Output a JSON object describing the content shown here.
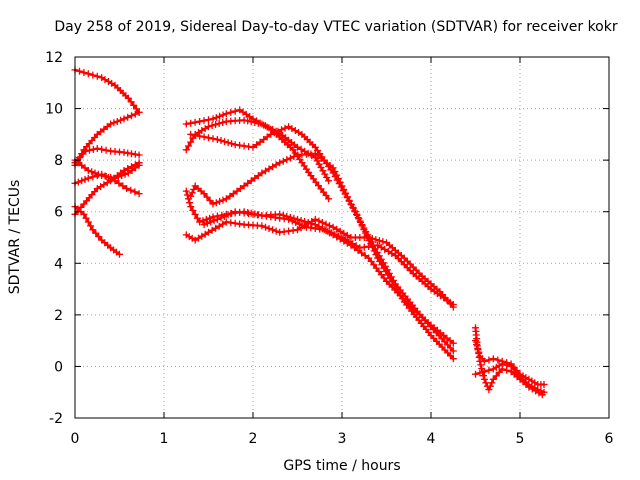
{
  "colors": {
    "series": "#ff0000",
    "grid": "#a0a0a0",
    "axis": "#000000",
    "background": "#ffffff"
  },
  "chart_data": {
    "type": "scatter",
    "title": "Day 258 of 2019, Sidereal Day-to-day VTEC variation (SDTVAR) for receiver kokr",
    "xlabel": "GPS time / hours",
    "ylabel": "SDTVAR / TECUs",
    "xlim": [
      0,
      6
    ],
    "ylim": [
      -2,
      12
    ],
    "xticks": [
      0,
      1,
      2,
      3,
      4,
      5,
      6
    ],
    "yticks": [
      -2,
      0,
      2,
      4,
      6,
      8,
      10,
      12
    ],
    "grid": true,
    "legend": "none",
    "marker": "+",
    "series": [
      {
        "name": "track-1",
        "points": [
          [
            0.0,
            11.5
          ],
          [
            0.15,
            11.35
          ],
          [
            0.3,
            11.2
          ],
          [
            0.45,
            10.9
          ],
          [
            0.6,
            10.4
          ],
          [
            0.72,
            9.85
          ]
        ]
      },
      {
        "name": "track-2",
        "points": [
          [
            0.0,
            7.8
          ],
          [
            0.1,
            8.4
          ],
          [
            0.25,
            9.0
          ],
          [
            0.4,
            9.4
          ],
          [
            0.55,
            9.6
          ],
          [
            0.72,
            9.85
          ]
        ]
      },
      {
        "name": "track-3",
        "points": [
          [
            0.0,
            7.9
          ],
          [
            0.12,
            8.35
          ],
          [
            0.25,
            8.45
          ],
          [
            0.4,
            8.35
          ],
          [
            0.55,
            8.3
          ],
          [
            0.72,
            8.2
          ]
        ]
      },
      {
        "name": "track-4",
        "points": [
          [
            0.0,
            8.0
          ],
          [
            0.15,
            7.6
          ],
          [
            0.3,
            7.4
          ],
          [
            0.45,
            7.3
          ],
          [
            0.6,
            7.5
          ],
          [
            0.72,
            7.8
          ]
        ]
      },
      {
        "name": "track-5",
        "points": [
          [
            0.0,
            7.1
          ],
          [
            0.15,
            7.3
          ],
          [
            0.3,
            7.45
          ],
          [
            0.45,
            7.2
          ],
          [
            0.58,
            6.9
          ],
          [
            0.72,
            6.7
          ]
        ]
      },
      {
        "name": "track-6",
        "points": [
          [
            0.0,
            6.2
          ],
          [
            0.1,
            5.9
          ],
          [
            0.2,
            5.3
          ],
          [
            0.3,
            4.9
          ],
          [
            0.4,
            4.6
          ],
          [
            0.5,
            4.35
          ]
        ]
      },
      {
        "name": "track-7",
        "points": [
          [
            0.0,
            5.9
          ],
          [
            0.1,
            6.3
          ],
          [
            0.25,
            6.9
          ],
          [
            0.4,
            7.2
          ],
          [
            0.55,
            7.6
          ],
          [
            0.72,
            7.9
          ]
        ]
      },
      {
        "name": "track-8",
        "points": [
          [
            1.25,
            9.4
          ],
          [
            1.4,
            9.5
          ],
          [
            1.55,
            9.6
          ],
          [
            1.7,
            9.8
          ],
          [
            1.85,
            9.95
          ],
          [
            2.0,
            9.6
          ],
          [
            2.2,
            9.2
          ],
          [
            2.45,
            8.4
          ],
          [
            2.65,
            7.4
          ],
          [
            2.85,
            6.5
          ]
        ]
      },
      {
        "name": "track-9",
        "points": [
          [
            1.25,
            8.4
          ],
          [
            1.35,
            9.0
          ],
          [
            1.5,
            9.3
          ],
          [
            1.7,
            9.5
          ],
          [
            1.9,
            9.55
          ],
          [
            2.1,
            9.4
          ],
          [
            2.3,
            9.05
          ],
          [
            2.5,
            8.5
          ],
          [
            2.7,
            8.1
          ],
          [
            2.85,
            7.2
          ]
        ]
      },
      {
        "name": "track-10",
        "points": [
          [
            1.3,
            9.0
          ],
          [
            1.45,
            8.9
          ],
          [
            1.6,
            8.8
          ],
          [
            1.8,
            8.6
          ],
          [
            2.0,
            8.5
          ],
          [
            2.2,
            9.0
          ],
          [
            2.4,
            9.3
          ],
          [
            2.55,
            9.0
          ],
          [
            2.7,
            8.5
          ],
          [
            2.9,
            7.5
          ],
          [
            3.15,
            6.0
          ],
          [
            3.4,
            4.2
          ],
          [
            3.7,
            2.5
          ],
          [
            4.0,
            1.2
          ],
          [
            4.25,
            0.3
          ]
        ]
      },
      {
        "name": "track-11",
        "points": [
          [
            1.3,
            6.6
          ],
          [
            1.35,
            7.0
          ],
          [
            1.45,
            6.7
          ],
          [
            1.55,
            6.3
          ],
          [
            1.7,
            6.5
          ],
          [
            1.9,
            7.0
          ],
          [
            2.1,
            7.5
          ],
          [
            2.3,
            7.9
          ],
          [
            2.5,
            8.2
          ],
          [
            2.7,
            8.25
          ],
          [
            2.9,
            7.7
          ],
          [
            3.1,
            6.3
          ],
          [
            3.35,
            4.7
          ],
          [
            3.6,
            3.2
          ],
          [
            3.9,
            1.9
          ],
          [
            4.25,
            0.6
          ]
        ]
      },
      {
        "name": "track-12",
        "points": [
          [
            1.25,
            6.8
          ],
          [
            1.3,
            6.2
          ],
          [
            1.4,
            5.6
          ],
          [
            1.55,
            5.8
          ],
          [
            1.7,
            5.9
          ],
          [
            1.9,
            6.0
          ],
          [
            2.1,
            5.85
          ],
          [
            2.3,
            5.9
          ],
          [
            2.5,
            5.7
          ],
          [
            2.7,
            5.5
          ],
          [
            2.9,
            5.1
          ],
          [
            3.1,
            4.7
          ],
          [
            3.3,
            4.2
          ],
          [
            3.5,
            3.3
          ],
          [
            3.75,
            2.4
          ],
          [
            4.0,
            1.6
          ],
          [
            4.25,
            0.9
          ]
        ]
      },
      {
        "name": "track-13",
        "points": [
          [
            1.25,
            5.1
          ],
          [
            1.35,
            4.9
          ],
          [
            1.5,
            5.2
          ],
          [
            1.7,
            5.6
          ],
          [
            1.9,
            5.5
          ],
          [
            2.1,
            5.45
          ],
          [
            2.3,
            5.2
          ],
          [
            2.5,
            5.3
          ],
          [
            2.7,
            5.7
          ],
          [
            2.9,
            5.4
          ],
          [
            3.1,
            5.0
          ],
          [
            3.3,
            5.0
          ],
          [
            3.5,
            4.8
          ],
          [
            3.7,
            4.2
          ],
          [
            3.9,
            3.5
          ],
          [
            4.1,
            2.9
          ],
          [
            4.25,
            2.3
          ]
        ]
      },
      {
        "name": "track-14",
        "points": [
          [
            1.45,
            5.5
          ],
          [
            1.6,
            5.7
          ],
          [
            1.8,
            6.0
          ],
          [
            2.0,
            5.9
          ],
          [
            2.2,
            5.8
          ],
          [
            2.4,
            5.7
          ],
          [
            2.6,
            5.4
          ],
          [
            2.8,
            5.3
          ],
          [
            3.0,
            5.0
          ],
          [
            3.2,
            4.6
          ],
          [
            3.4,
            4.7
          ],
          [
            3.6,
            4.3
          ],
          [
            3.8,
            3.6
          ],
          [
            4.0,
            3.0
          ],
          [
            4.25,
            2.4
          ]
        ]
      },
      {
        "name": "track-15",
        "points": [
          [
            4.5,
            1.5
          ],
          [
            4.52,
            0.8
          ],
          [
            4.55,
            0.2
          ],
          [
            4.6,
            -0.5
          ],
          [
            4.65,
            -0.9
          ],
          [
            4.7,
            -0.5
          ],
          [
            4.8,
            -0.1
          ],
          [
            4.9,
            -0.2
          ],
          [
            5.0,
            -0.5
          ],
          [
            5.1,
            -0.8
          ],
          [
            5.25,
            -1.1
          ]
        ]
      },
      {
        "name": "track-16",
        "points": [
          [
            4.5,
            1.0
          ],
          [
            4.55,
            0.4
          ],
          [
            4.6,
            0.2
          ],
          [
            4.7,
            0.3
          ],
          [
            4.8,
            0.2
          ],
          [
            4.9,
            0.1
          ],
          [
            5.0,
            -0.3
          ],
          [
            5.1,
            -0.5
          ],
          [
            5.2,
            -0.7
          ],
          [
            5.27,
            -0.7
          ]
        ]
      },
      {
        "name": "track-17",
        "points": [
          [
            4.5,
            -0.3
          ],
          [
            4.6,
            -0.2
          ],
          [
            4.7,
            -0.1
          ],
          [
            4.8,
            0.1
          ],
          [
            4.9,
            0.0
          ],
          [
            5.0,
            -0.4
          ],
          [
            5.1,
            -0.7
          ],
          [
            5.2,
            -0.9
          ],
          [
            5.27,
            -1.0
          ]
        ]
      }
    ]
  }
}
